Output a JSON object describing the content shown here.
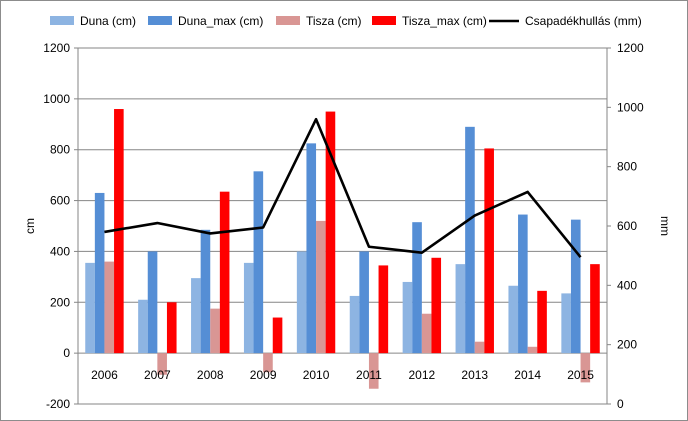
{
  "chart_data": {
    "type": "bar",
    "categories": [
      "2006",
      "2007",
      "2008",
      "2009",
      "2010",
      "2011",
      "2012",
      "2013",
      "2014",
      "2015"
    ],
    "series": [
      {
        "name": "Duna (cm)",
        "type": "bar",
        "axis": "left",
        "color": "#8DB4E2",
        "values": [
          355,
          210,
          295,
          355,
          400,
          225,
          280,
          350,
          265,
          235
        ]
      },
      {
        "name": "Duna_max (cm)",
        "type": "bar",
        "axis": "left",
        "color": "#558ED5",
        "values": [
          630,
          400,
          485,
          715,
          825,
          400,
          515,
          890,
          545,
          525
        ]
      },
      {
        "name": "Tisza (cm)",
        "type": "bar",
        "axis": "left",
        "color": "#D99694",
        "values": [
          360,
          -85,
          175,
          -75,
          520,
          -140,
          155,
          45,
          25,
          -115
        ]
      },
      {
        "name": "Tisza_max (cm)",
        "type": "bar",
        "axis": "left",
        "color": "#FF0000",
        "values": [
          960,
          200,
          635,
          140,
          950,
          345,
          375,
          805,
          245,
          350
        ]
      },
      {
        "name": "Csapadékhullás (mm)",
        "type": "line",
        "axis": "right",
        "color": "#000000",
        "values": [
          580,
          610,
          575,
          595,
          960,
          530,
          510,
          635,
          715,
          495
        ]
      }
    ],
    "left_axis": {
      "label": "cm",
      "min": -200,
      "max": 1200,
      "ticks": [
        -200,
        0,
        200,
        400,
        600,
        800,
        1000,
        1200
      ]
    },
    "right_axis": {
      "label": "mm",
      "min": 0,
      "max": 1200,
      "ticks": [
        0,
        200,
        400,
        600,
        800,
        1000,
        1200
      ]
    },
    "legend_position": "top",
    "grid": "horizontal"
  }
}
